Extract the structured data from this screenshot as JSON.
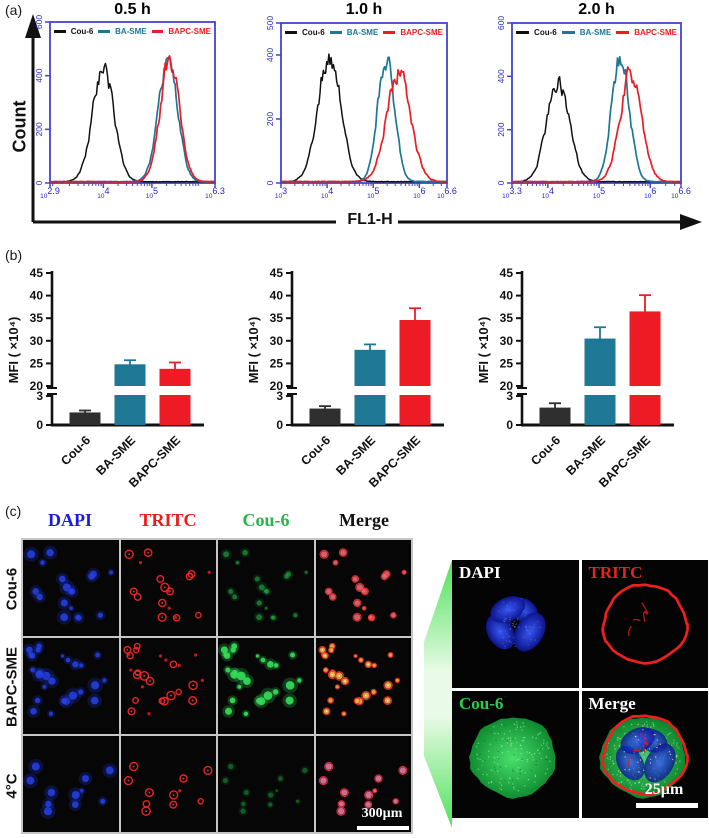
{
  "panels": {
    "a_label": "(a)",
    "b_label": "(b)",
    "c_label": "(c)"
  },
  "colors": {
    "axis_blue": "#4343cf",
    "tick_blue": "#2525c8",
    "teal": "#1e7795",
    "red": "#ed1c24",
    "black": "#111111",
    "bar_dark": "#2f2f2f"
  },
  "panel_a": {
    "y_axis_label": "Count",
    "x_axis_label": "FL1-H"
  },
  "panel_b": {},
  "chart_data": [
    {
      "type": "line",
      "id": "flow_0_5h",
      "title": "0.5 h",
      "xlabel": "FL1-H",
      "ylabel": "Count",
      "xscale": "log10",
      "xlog_range": [
        2.9,
        6.3
      ],
      "ylim": [
        0,
        600
      ],
      "yticks": [
        0,
        200,
        400,
        600
      ],
      "xtick_exponents": [
        "2.9",
        "4",
        "5",
        "6.3"
      ],
      "xtick_logs": [
        2.9,
        4,
        5,
        6.3
      ],
      "legend_position": "top-inside",
      "series": [
        {
          "name": "Cou-6",
          "color": "#111111",
          "peak_log": 4.0,
          "sigma_log": 0.22,
          "peak_count": 430
        },
        {
          "name": "BA-SME",
          "color": "#1e7795",
          "peak_log": 5.33,
          "sigma_log": 0.2,
          "peak_count": 445
        },
        {
          "name": "BAPC-SME",
          "color": "#ed1c24",
          "peak_log": 5.37,
          "sigma_log": 0.2,
          "peak_count": 460
        }
      ]
    },
    {
      "type": "line",
      "id": "flow_1h",
      "title": "1.0 h",
      "xlabel": "FL1-H",
      "ylabel": "Count",
      "xscale": "log10",
      "xlog_range": [
        3.0,
        6.6
      ],
      "ylim": [
        0,
        500
      ],
      "yticks": [
        0,
        200,
        400,
        500
      ],
      "xtick_exponents": [
        "3",
        "4",
        "5",
        "6",
        "6.6"
      ],
      "xtick_logs": [
        3,
        4,
        5,
        6,
        6.6
      ],
      "legend_position": "top-inside",
      "series": [
        {
          "name": "Cou-6",
          "color": "#111111",
          "peak_log": 4.05,
          "sigma_log": 0.25,
          "peak_count": 400
        },
        {
          "name": "BA-SME",
          "color": "#1e7795",
          "peak_log": 5.28,
          "sigma_log": 0.18,
          "peak_count": 400
        },
        {
          "name": "BAPC-SME",
          "color": "#ed1c24",
          "peak_log": 5.55,
          "sigma_log": 0.26,
          "peak_count": 348
        }
      ]
    },
    {
      "type": "line",
      "id": "flow_2h",
      "title": "2.0 h",
      "xlabel": "FL1-H",
      "ylabel": "Count",
      "xscale": "log10",
      "xlog_range": [
        3.3,
        6.6
      ],
      "ylim": [
        0,
        600
      ],
      "yticks": [
        0,
        200,
        400,
        600
      ],
      "xtick_exponents": [
        "3.3",
        "4",
        "5",
        "6",
        "6.6"
      ],
      "xtick_logs": [
        3.3,
        4,
        5,
        6,
        6.6
      ],
      "legend_position": "top-inside",
      "series": [
        {
          "name": "Cou-6",
          "color": "#111111",
          "peak_log": 4.2,
          "sigma_log": 0.22,
          "peak_count": 385
        },
        {
          "name": "BA-SME",
          "color": "#1e7795",
          "peak_log": 5.42,
          "sigma_log": 0.17,
          "peak_count": 478
        },
        {
          "name": "BAPC-SME",
          "color": "#ed1c24",
          "peak_log": 5.62,
          "sigma_log": 0.21,
          "peak_count": 408
        }
      ]
    },
    {
      "type": "bar",
      "id": "mfi_0_5h",
      "ylabel": "MFI ( ×10⁴)",
      "categories": [
        "Cou-6",
        "BA-SME",
        "BAPC-SME"
      ],
      "values": [
        1.3,
        24.8,
        23.8
      ],
      "errors": [
        0.2,
        0.9,
        1.4
      ],
      "bar_colors": [
        "#2f2f2f",
        "#1e7795",
        "#ed1c24"
      ],
      "yticks_lower": [
        0,
        3
      ],
      "yticks_upper": [
        20,
        25,
        30,
        35,
        40,
        45
      ],
      "axis_break": [
        3,
        20
      ],
      "ylim": [
        0,
        45
      ]
    },
    {
      "type": "bar",
      "id": "mfi_1h",
      "ylabel": "MFI ( ×10⁴)",
      "categories": [
        "Cou-6",
        "BA-SME",
        "BAPC-SME"
      ],
      "values": [
        1.7,
        28.0,
        34.6
      ],
      "errors": [
        0.25,
        1.2,
        2.6
      ],
      "bar_colors": [
        "#2f2f2f",
        "#1e7795",
        "#ed1c24"
      ],
      "yticks_lower": [
        0,
        3
      ],
      "yticks_upper": [
        20,
        25,
        30,
        35,
        40,
        45
      ],
      "axis_break": [
        3,
        20
      ],
      "ylim": [
        0,
        45
      ]
    },
    {
      "type": "bar",
      "id": "mfi_2h",
      "ylabel": "MFI ( ×10⁴)",
      "categories": [
        "Cou-6",
        "BA-SME",
        "BAPC-SME"
      ],
      "values": [
        1.8,
        30.5,
        36.5
      ],
      "errors": [
        0.45,
        2.5,
        3.6
      ],
      "bar_colors": [
        "#2f2f2f",
        "#1e7795",
        "#ed1c24"
      ],
      "yticks_lower": [
        0,
        3
      ],
      "yticks_upper": [
        20,
        25,
        30,
        35,
        40,
        45
      ],
      "axis_break": [
        3,
        20
      ],
      "ylim": [
        0,
        45
      ]
    }
  ],
  "panel_c": {
    "col_headers": [
      {
        "label": "DAPI",
        "color": "#1c1cdb"
      },
      {
        "label": "TRITC",
        "color": "#ea1c1c"
      },
      {
        "label": "Cou-6",
        "color": "#28b44b"
      },
      {
        "label": "Merge",
        "color": "#111111"
      }
    ],
    "row_labels": [
      "Cou-6",
      "BAPC-SME",
      "4°C"
    ],
    "scalebar_main": "300µm",
    "zoom_panel": {
      "labels": [
        {
          "label": "DAPI",
          "color": "#ffffff"
        },
        {
          "label": "TRITC",
          "color": "#e82121"
        },
        {
          "label": "Cou-6",
          "color": "#2ecc4e"
        },
        {
          "label": "Merge",
          "color": "#ffffff"
        }
      ],
      "scalebar": "25µm"
    }
  }
}
